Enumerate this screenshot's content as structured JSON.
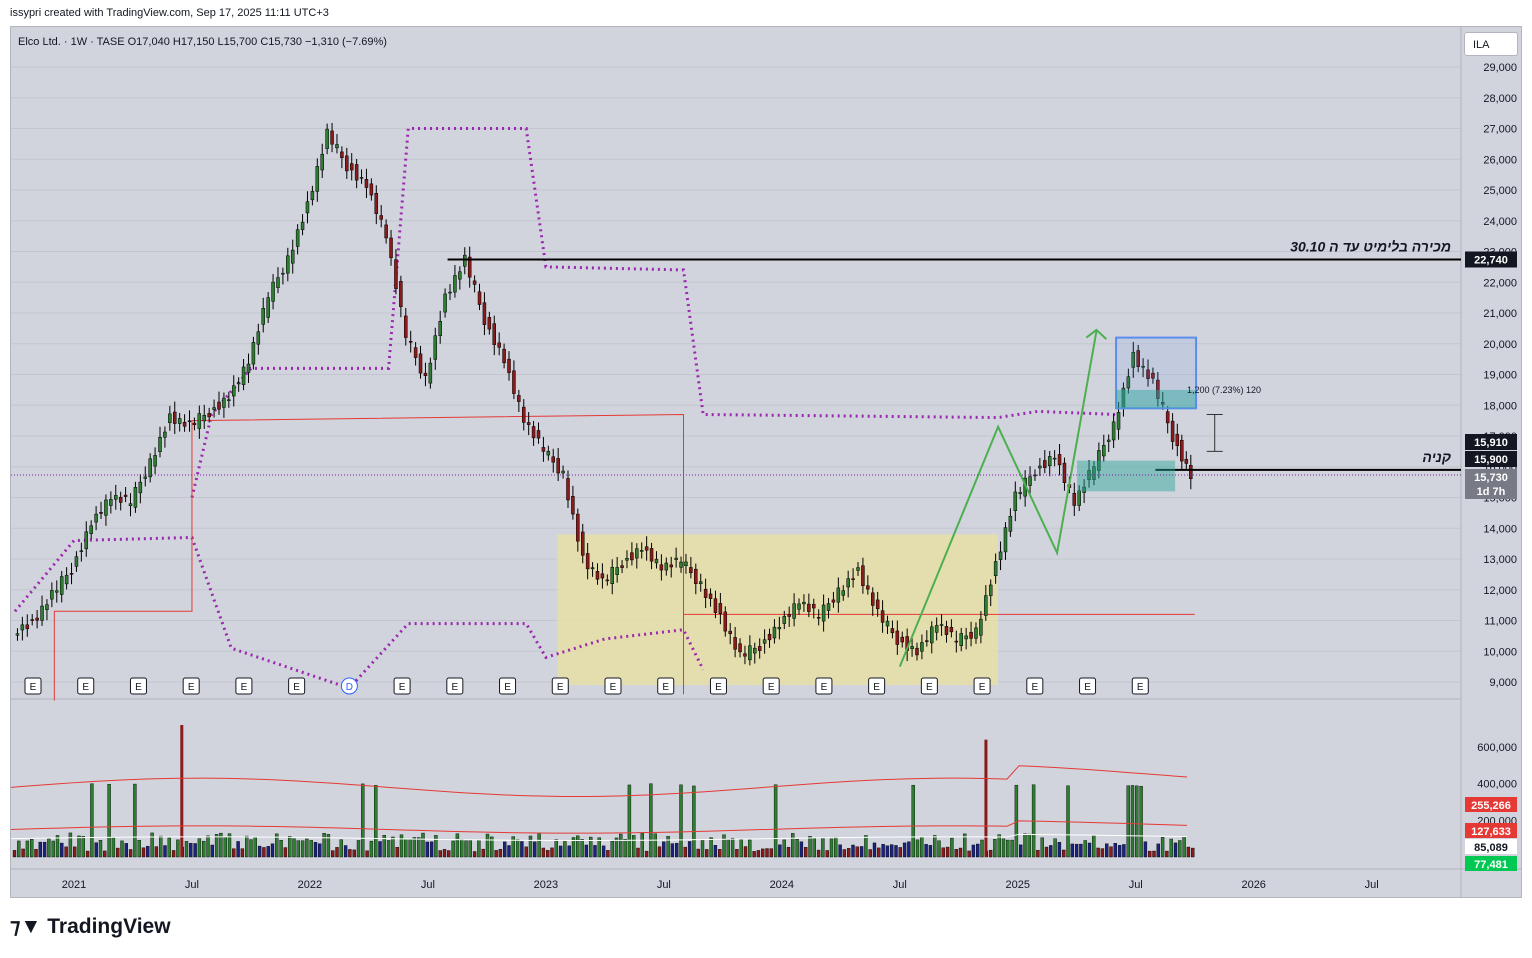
{
  "credit": "issypri created with TradingView.com, Sep 17, 2025 11:11 UTC+3",
  "legend": "Elco Ltd. · 1W · TASE  O17,040  H17,150  L15,700  C15,730  −1,310 (−7.69%)",
  "currency_button": "ILA",
  "brand": {
    "icon": "tradingview-logo-icon",
    "name": "TradingView"
  },
  "chart_data": {
    "type": "candlestick",
    "symbol": "Elco Ltd.",
    "interval": "1W",
    "exchange": "TASE",
    "currency": "ILA",
    "ohlc_last": {
      "open": 17040,
      "high": 17150,
      "low": 15700,
      "close": 15730,
      "change": -1310,
      "change_pct": -7.69
    },
    "price_axis": {
      "ticks": [
        "29,000",
        "28,000",
        "27,000",
        "26,000",
        "25,000",
        "24,000",
        "23,000",
        "22,000",
        "21,000",
        "20,000",
        "19,000",
        "18,000",
        "17,000",
        "16,000",
        "15,000",
        "14,000",
        "13,000",
        "12,000",
        "11,000",
        "10,000",
        "9,000"
      ],
      "range": [
        9000,
        29000
      ]
    },
    "time_axis": {
      "ticks": [
        "2021",
        "Jul",
        "2022",
        "Jul",
        "2023",
        "Jul",
        "2024",
        "Jul",
        "2025",
        "Jul",
        "2026",
        "Jul"
      ]
    },
    "price_labels": [
      {
        "text": "22,740",
        "value": 22740,
        "style": "black"
      },
      {
        "text": "15,910",
        "value": 15910,
        "style": "black"
      },
      {
        "text": "15,900",
        "value": 15900,
        "style": "black"
      },
      {
        "text": "15,730",
        "value": 15730,
        "style": "gray"
      },
      {
        "text": "1d 7h",
        "value": 15730,
        "style": "gray"
      }
    ],
    "annotations": [
      {
        "text": "מכירה בלימיט עד ה 30.10",
        "level": 22740
      },
      {
        "text": "קניה",
        "level": 15900
      },
      {
        "text": "1,200 (7.23%) 120"
      }
    ],
    "close_series": [
      {
        "date": "2020-10",
        "close": 10900
      },
      {
        "date": "2020-11",
        "close": 11800
      },
      {
        "date": "2020-12",
        "close": 12700
      },
      {
        "date": "2021-01",
        "close": 14200
      },
      {
        "date": "2021-02",
        "close": 15000
      },
      {
        "date": "2021-03",
        "close": 14800
      },
      {
        "date": "2021-04",
        "close": 16200
      },
      {
        "date": "2021-05",
        "close": 17600
      },
      {
        "date": "2021-06",
        "close": 17300
      },
      {
        "date": "2021-07",
        "close": 17800
      },
      {
        "date": "2021-08",
        "close": 18300
      },
      {
        "date": "2021-09",
        "close": 19400
      },
      {
        "date": "2021-10",
        "close": 21500
      },
      {
        "date": "2021-11",
        "close": 22800
      },
      {
        "date": "2021-12",
        "close": 24500
      },
      {
        "date": "2022-01",
        "close": 26800
      },
      {
        "date": "2022-02",
        "close": 25800
      },
      {
        "date": "2022-03",
        "close": 25200
      },
      {
        "date": "2022-04",
        "close": 23500
      },
      {
        "date": "2022-05",
        "close": 20200
      },
      {
        "date": "2022-06",
        "close": 18900
      },
      {
        "date": "2022-07",
        "close": 21500
      },
      {
        "date": "2022-08",
        "close": 22700
      },
      {
        "date": "2022-09",
        "close": 20800
      },
      {
        "date": "2022-10",
        "close": 19500
      },
      {
        "date": "2022-11",
        "close": 17500
      },
      {
        "date": "2022-12",
        "close": 16500
      },
      {
        "date": "2023-01",
        "close": 15800
      },
      {
        "date": "2023-02",
        "close": 13000
      },
      {
        "date": "2023-03",
        "close": 12200
      },
      {
        "date": "2023-04",
        "close": 12900
      },
      {
        "date": "2023-05",
        "close": 13400
      },
      {
        "date": "2023-06",
        "close": 12700
      },
      {
        "date": "2023-07",
        "close": 12900
      },
      {
        "date": "2023-08",
        "close": 12200
      },
      {
        "date": "2023-09",
        "close": 11100
      },
      {
        "date": "2023-10",
        "close": 9800
      },
      {
        "date": "2023-11",
        "close": 10200
      },
      {
        "date": "2023-12",
        "close": 10900
      },
      {
        "date": "2024-01",
        "close": 11600
      },
      {
        "date": "2024-02",
        "close": 11100
      },
      {
        "date": "2024-03",
        "close": 12000
      },
      {
        "date": "2024-04",
        "close": 12600
      },
      {
        "date": "2024-05",
        "close": 11200
      },
      {
        "date": "2024-06",
        "close": 10400
      },
      {
        "date": "2024-07",
        "close": 10000
      },
      {
        "date": "2024-08",
        "close": 10900
      },
      {
        "date": "2024-09",
        "close": 10300
      },
      {
        "date": "2024-10",
        "close": 10700
      },
      {
        "date": "2024-11",
        "close": 12800
      },
      {
        "date": "2024-12",
        "close": 15000
      },
      {
        "date": "2025-01",
        "close": 15900
      },
      {
        "date": "2025-02",
        "close": 16400
      },
      {
        "date": "2025-03",
        "close": 14800
      },
      {
        "date": "2025-04",
        "close": 16000
      },
      {
        "date": "2025-05",
        "close": 17400
      },
      {
        "date": "2025-06",
        "close": 19600
      },
      {
        "date": "2025-07",
        "close": 18700
      },
      {
        "date": "2025-08",
        "close": 17000
      },
      {
        "date": "2025-09",
        "close": 15730
      }
    ],
    "volume_axis": {
      "ticks": [
        "600,000",
        "400,000",
        "200,000"
      ]
    },
    "volume_labels": [
      {
        "text": "255,266",
        "style": "red"
      },
      {
        "text": "127,633",
        "style": "red"
      },
      {
        "text": "85,089",
        "style": "white"
      },
      {
        "text": "77,481",
        "style": "green"
      }
    ],
    "event_markers": [
      "E",
      "E",
      "E",
      "E",
      "E",
      "E",
      "D",
      "E",
      "E",
      "E",
      "E",
      "E",
      "E",
      "E",
      "E",
      "E",
      "E",
      "E",
      "E",
      "E",
      "E",
      "E"
    ],
    "colors": {
      "up": "#2e7d32",
      "down": "#8b1a1a",
      "highlight_zone": "#e9e2a0",
      "dotted_channel": "#9c27b0",
      "trend_line": "#4caf50",
      "target_box": "#5b8def",
      "buy_zone": "#26a69a",
      "level_line": "#000000",
      "support_line": "#e53935"
    }
  }
}
